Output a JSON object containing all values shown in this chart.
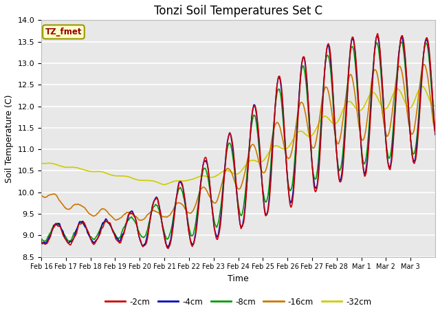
{
  "title": "Tonzi Soil Temperatures Set C",
  "xlabel": "Time",
  "ylabel": "Soil Temperature (C)",
  "ylim": [
    8.5,
    14.0
  ],
  "yticks": [
    8.5,
    9.0,
    9.5,
    10.0,
    10.5,
    11.0,
    11.5,
    12.0,
    12.5,
    13.0,
    13.5,
    14.0
  ],
  "x_tick_labels": [
    "Feb 16",
    "Feb 17",
    "Feb 18",
    "Feb 19",
    "Feb 20",
    "Feb 21",
    "Feb 22",
    "Feb 23",
    "Feb 24",
    "Feb 25",
    "Feb 26",
    "Feb 27",
    "Feb 28",
    "Mar 1",
    "Mar 2",
    "Mar 3"
  ],
  "series_colors": [
    "#cc0000",
    "#0000bb",
    "#009900",
    "#cc7700",
    "#cccc00"
  ],
  "series_labels": [
    "-2cm",
    "-4cm",
    "-8cm",
    "-16cm",
    "-32cm"
  ],
  "annotation_text": "TZ_fmet",
  "annotation_color": "#990000",
  "annotation_bg": "#ffffcc",
  "annotation_border": "#999900",
  "background_color": "#e8e8e8",
  "grid_color": "#ffffff",
  "title_fontsize": 12,
  "label_fontsize": 9,
  "tick_fontsize": 8
}
